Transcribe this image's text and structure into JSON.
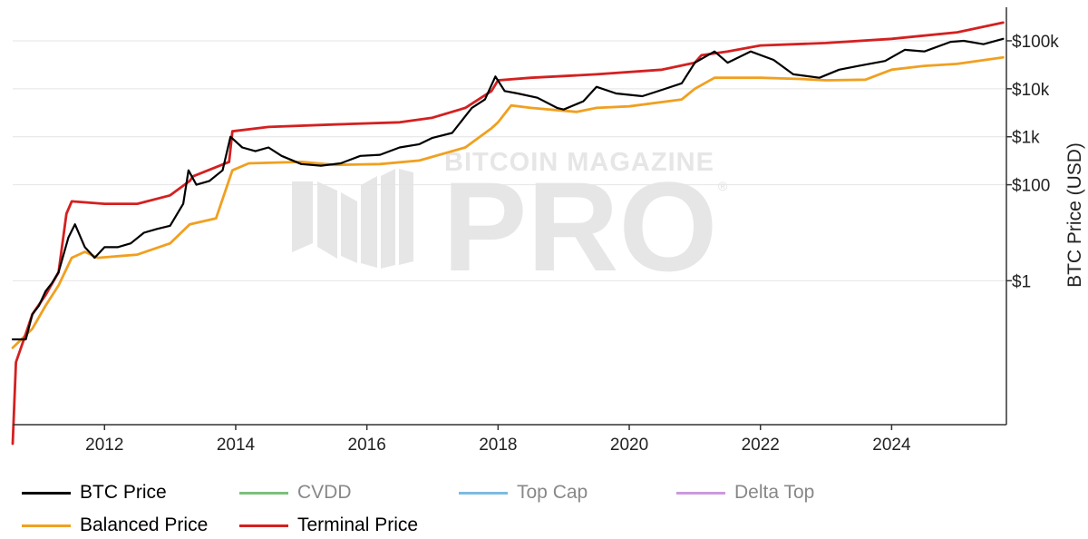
{
  "watermark": {
    "brand": "BITCOIN MAGAZINE",
    "pro": "PRO",
    "reg": "®"
  },
  "chart_data": {
    "type": "line",
    "yscale": "log",
    "ylabel": "BTC Price (USD)",
    "ylim": [
      0.001,
      500000
    ],
    "xlim": [
      2010.6,
      2025.75
    ],
    "x_ticks": [
      "2012",
      "2014",
      "2016",
      "2018",
      "2020",
      "2022",
      "2024"
    ],
    "y_ticks": [
      {
        "value": 1,
        "label": "$1"
      },
      {
        "value": 100,
        "label": "$100"
      },
      {
        "value": 1000,
        "label": "$1k"
      },
      {
        "value": 10000,
        "label": "$10k"
      },
      {
        "value": 100000,
        "label": "$100k"
      }
    ],
    "gridlines": "horizontal",
    "legend_position": "bottom-left",
    "series": [
      {
        "name": "BTC Price",
        "color": "#000000",
        "visible": true,
        "x": [
          2010.6,
          2010.8,
          2010.9,
          2011.0,
          2011.1,
          2011.2,
          2011.3,
          2011.45,
          2011.55,
          2011.7,
          2011.85,
          2012.0,
          2012.2,
          2012.4,
          2012.6,
          2012.8,
          2013.0,
          2013.2,
          2013.28,
          2013.4,
          2013.6,
          2013.8,
          2013.92,
          2014.1,
          2014.3,
          2014.5,
          2014.7,
          2015.0,
          2015.3,
          2015.6,
          2015.9,
          2016.2,
          2016.5,
          2016.8,
          2017.0,
          2017.3,
          2017.6,
          2017.8,
          2017.96,
          2018.1,
          2018.3,
          2018.6,
          2018.9,
          2019.0,
          2019.3,
          2019.5,
          2019.8,
          2020.2,
          2020.5,
          2020.8,
          2021.0,
          2021.3,
          2021.5,
          2021.85,
          2022.2,
          2022.5,
          2022.9,
          2023.2,
          2023.5,
          2023.9,
          2024.2,
          2024.5,
          2024.9,
          2025.1,
          2025.4,
          2025.7
        ],
        "y": [
          0.06,
          0.06,
          0.2,
          0.3,
          0.6,
          0.9,
          1.5,
          8,
          15,
          5,
          3,
          5,
          5,
          6,
          10,
          12,
          14,
          40,
          200,
          100,
          120,
          200,
          1000,
          600,
          500,
          600,
          400,
          270,
          250,
          280,
          400,
          420,
          600,
          700,
          950,
          1200,
          4000,
          6000,
          18000,
          9000,
          8000,
          6500,
          4000,
          3700,
          5500,
          11000,
          8000,
          7000,
          9500,
          13000,
          35000,
          60000,
          35000,
          60000,
          40000,
          20000,
          17000,
          25000,
          30000,
          38000,
          65000,
          60000,
          95000,
          100000,
          85000,
          110000
        ]
      },
      {
        "name": "CVDD",
        "color": "#7cbf7c",
        "visible": false,
        "x": [],
        "y": []
      },
      {
        "name": "Top Cap",
        "color": "#7cbbe0",
        "visible": false,
        "x": [],
        "y": []
      },
      {
        "name": "Delta Top",
        "color": "#cc99dd",
        "visible": false,
        "x": [],
        "y": []
      },
      {
        "name": "Balanced Price",
        "color": "#f0a020",
        "visible": true,
        "x": [
          2010.6,
          2010.9,
          2011.1,
          2011.3,
          2011.5,
          2011.7,
          2011.9,
          2012.5,
          2013.0,
          2013.3,
          2013.7,
          2013.95,
          2014.2,
          2015.0,
          2015.5,
          2016.2,
          2016.8,
          2017.5,
          2017.9,
          2018.0,
          2018.2,
          2018.5,
          2019.2,
          2019.5,
          2020.0,
          2020.8,
          2021.0,
          2021.3,
          2022.0,
          2022.6,
          2023.0,
          2023.6,
          2024.0,
          2024.5,
          2025.0,
          2025.7
        ],
        "y": [
          0.04,
          0.1,
          0.3,
          0.8,
          3,
          4,
          3,
          3.5,
          6,
          15,
          20,
          200,
          280,
          300,
          260,
          270,
          320,
          600,
          1500,
          2000,
          4500,
          4000,
          3300,
          4000,
          4300,
          6000,
          10000,
          17000,
          17000,
          16000,
          15000,
          15500,
          25000,
          30000,
          33000,
          45000
        ]
      },
      {
        "name": "Terminal Price",
        "color": "#d42020",
        "visible": true,
        "x": [
          2010.6,
          2010.65,
          2010.75,
          2010.9,
          2011.1,
          2011.3,
          2011.42,
          2011.5,
          2012.0,
          2012.5,
          2013.0,
          2013.3,
          2013.35,
          2013.9,
          2013.95,
          2014.5,
          2015.5,
          2016.5,
          2017.0,
          2017.5,
          2017.9,
          2018.0,
          2018.5,
          2019.5,
          2020.5,
          2021.0,
          2021.1,
          2021.5,
          2022.0,
          2023.0,
          2024.0,
          2025.0,
          2025.7
        ],
        "y": [
          0.0004,
          0.02,
          0.05,
          0.2,
          0.5,
          1.5,
          25,
          45,
          40,
          40,
          60,
          120,
          150,
          300,
          1300,
          1600,
          1800,
          2000,
          2500,
          4000,
          9000,
          15000,
          17000,
          20000,
          25000,
          35000,
          50000,
          60000,
          80000,
          90000,
          110000,
          150000,
          240000
        ]
      }
    ]
  }
}
